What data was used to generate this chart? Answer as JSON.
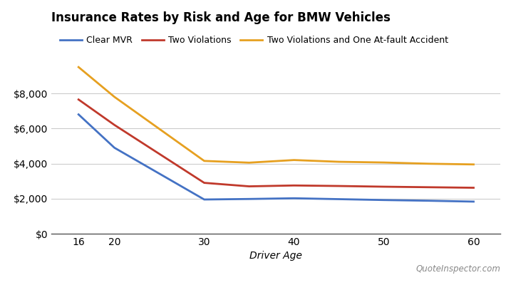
{
  "title": "Insurance Rates by Risk and Age for BMW Vehicles",
  "xlabel": "Driver Age",
  "ages": [
    16,
    20,
    30,
    35,
    40,
    45,
    50,
    55,
    60
  ],
  "clear_mvr": [
    6800,
    4900,
    1950,
    1980,
    2020,
    1970,
    1920,
    1880,
    1830
  ],
  "two_violations": [
    7650,
    6200,
    2900,
    2700,
    2750,
    2720,
    2680,
    2650,
    2620
  ],
  "two_viol_accident": [
    9500,
    7800,
    4150,
    4050,
    4200,
    4100,
    4060,
    3990,
    3950
  ],
  "line_colors": {
    "clear_mvr": "#4472c4",
    "two_violations": "#c0392b",
    "two_viol_accident": "#e6a020"
  },
  "legend_labels": {
    "clear_mvr": "Clear MVR",
    "two_violations": "Two Violations",
    "two_viol_accident": "Two Violations and One At-fault Accident"
  },
  "ylim": [
    0,
    10400
  ],
  "yticks": [
    0,
    2000,
    4000,
    6000,
    8000
  ],
  "xticks": [
    16,
    20,
    30,
    40,
    50,
    60
  ],
  "xtick_labels": [
    "16",
    "20",
    "30",
    "40",
    "50",
    "60"
  ],
  "background_color": "#ffffff",
  "grid_color": "#cccccc",
  "line_width": 2.0,
  "title_fontsize": 12,
  "axis_label_fontsize": 10,
  "legend_fontsize": 9,
  "watermark_text": "QuoteInspector.com",
  "watermark_color": "#888888"
}
